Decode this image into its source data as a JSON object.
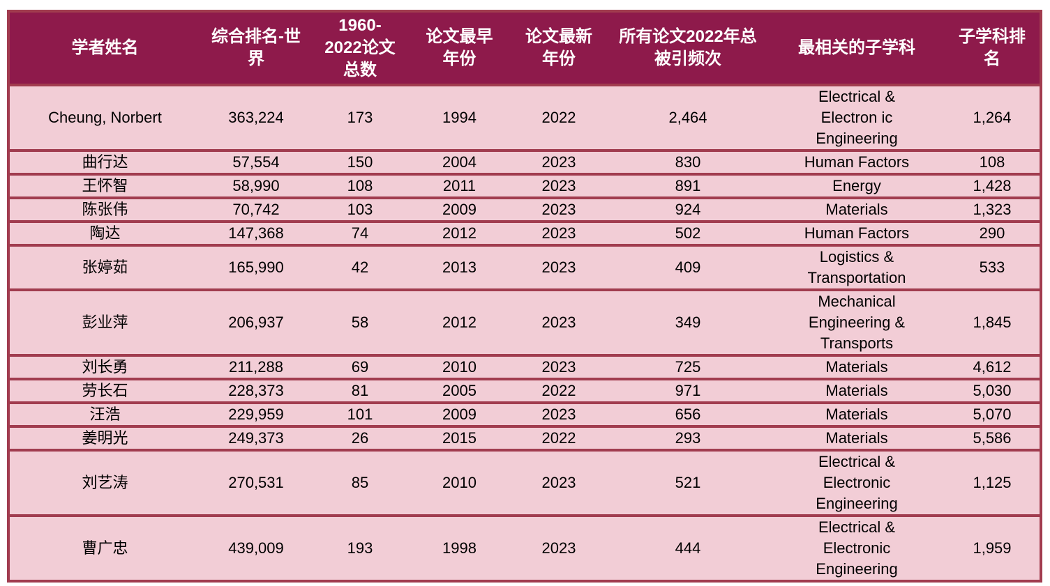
{
  "colors": {
    "header_bg": "#8E1A4B",
    "header_text": "#FFFFFF",
    "row_bg": "#F2CDD6",
    "border": "#A13C4F",
    "body_text": "#000000"
  },
  "table": {
    "columns": [
      "学者姓名",
      "综合排名-世界",
      "1960-2022论文总数",
      "论文最早年份",
      "论文最新年份",
      "所有论文2022年总被引频次",
      "最相关的子学科",
      "子学科排名"
    ],
    "column_keys": [
      "name",
      "world_rank",
      "papers_total",
      "earliest_year",
      "latest_year",
      "citations_2022",
      "subfield",
      "subfield_rank"
    ],
    "rows": [
      {
        "name": "Cheung, Norbert",
        "world_rank": "363,224",
        "papers_total": "173",
        "earliest_year": "1994",
        "latest_year": "2022",
        "citations_2022": "2,464",
        "subfield": "Electrical & Electron ic Engineering",
        "subfield_rank": "1,264"
      },
      {
        "name": "曲行达",
        "world_rank": "57,554",
        "papers_total": "150",
        "earliest_year": "2004",
        "latest_year": "2023",
        "citations_2022": "830",
        "subfield": "Human Factors",
        "subfield_rank": "108"
      },
      {
        "name": "王怀智",
        "world_rank": "58,990",
        "papers_total": "108",
        "earliest_year": "2011",
        "latest_year": "2023",
        "citations_2022": "891",
        "subfield": "Energy",
        "subfield_rank": "1,428"
      },
      {
        "name": "陈张伟",
        "world_rank": "70,742",
        "papers_total": "103",
        "earliest_year": "2009",
        "latest_year": "2023",
        "citations_2022": "924",
        "subfield": "Materials",
        "subfield_rank": "1,323"
      },
      {
        "name": "陶达",
        "world_rank": "147,368",
        "papers_total": "74",
        "earliest_year": "2012",
        "latest_year": "2023",
        "citations_2022": "502",
        "subfield": "Human Factors",
        "subfield_rank": "290"
      },
      {
        "name": "张婷茹",
        "world_rank": "165,990",
        "papers_total": "42",
        "earliest_year": "2013",
        "latest_year": "2023",
        "citations_2022": "409",
        "subfield": "Logistics & Transportation",
        "subfield_rank": "533"
      },
      {
        "name": "彭业萍",
        "world_rank": "206,937",
        "papers_total": "58",
        "earliest_year": "2012",
        "latest_year": "2023",
        "citations_2022": "349",
        "subfield": "Mechanical Engineering & Transports",
        "subfield_rank": "1,845"
      },
      {
        "name": "刘长勇",
        "world_rank": "211,288",
        "papers_total": "69",
        "earliest_year": "2010",
        "latest_year": "2023",
        "citations_2022": "725",
        "subfield": "Materials",
        "subfield_rank": "4,612"
      },
      {
        "name": "劳长石",
        "world_rank": "228,373",
        "papers_total": "81",
        "earliest_year": "2005",
        "latest_year": "2022",
        "citations_2022": "971",
        "subfield": "Materials",
        "subfield_rank": "5,030"
      },
      {
        "name": "汪浩",
        "world_rank": "229,959",
        "papers_total": "101",
        "earliest_year": "2009",
        "latest_year": "2023",
        "citations_2022": "656",
        "subfield": "Materials",
        "subfield_rank": "5,070"
      },
      {
        "name": "姜明光",
        "world_rank": "249,373",
        "papers_total": "26",
        "earliest_year": "2015",
        "latest_year": "2022",
        "citations_2022": "293",
        "subfield": "Materials",
        "subfield_rank": "5,586"
      },
      {
        "name": "刘艺涛",
        "world_rank": "270,531",
        "papers_total": "85",
        "earliest_year": "2010",
        "latest_year": "2023",
        "citations_2022": "521",
        "subfield": "Electrical & Electronic Engineering",
        "subfield_rank": "1,125"
      },
      {
        "name": "曹广忠",
        "world_rank": "439,009",
        "papers_total": "193",
        "earliest_year": "1998",
        "latest_year": "2023",
        "citations_2022": "444",
        "subfield": "Electrical & Electronic Engineering",
        "subfield_rank": "1,959"
      }
    ]
  }
}
